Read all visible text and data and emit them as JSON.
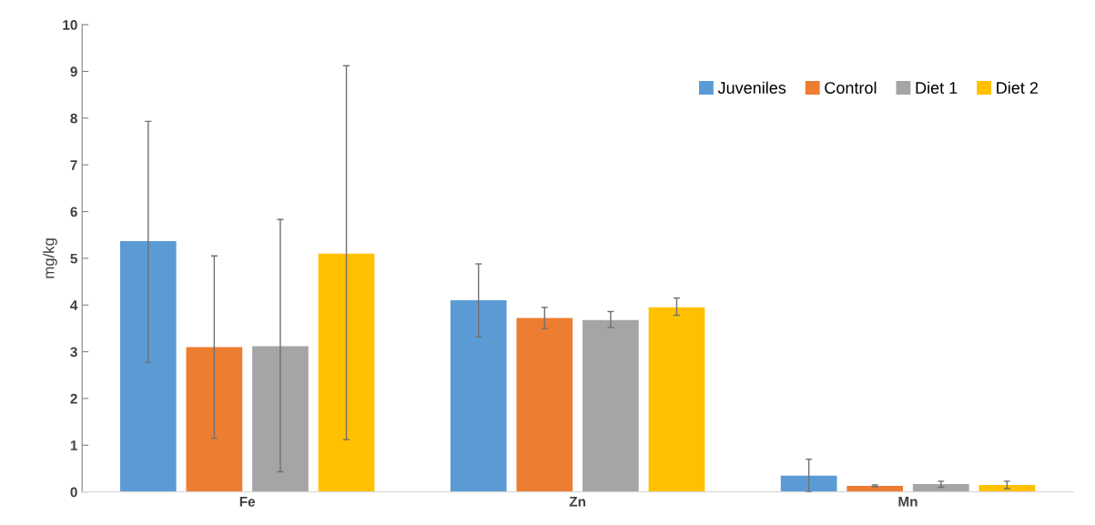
{
  "chart_data": {
    "type": "bar",
    "ylabel": "mg/kg",
    "categories": [
      "Fe",
      "Zn",
      "Mn"
    ],
    "series": [
      {
        "name": "Juveniles",
        "color": "#5b9bd5",
        "values": [
          5.37,
          4.1,
          0.35
        ],
        "errors": [
          [
            2.77,
            7.93
          ],
          [
            3.32,
            4.88
          ],
          [
            0.0,
            0.7
          ]
        ]
      },
      {
        "name": "Control",
        "color": "#ed7d31",
        "values": [
          3.1,
          3.72,
          0.13
        ],
        "errors": [
          [
            1.15,
            5.05
          ],
          [
            3.5,
            3.95
          ],
          [
            0.11,
            0.15
          ]
        ]
      },
      {
        "name": "Diet 1",
        "color": "#a5a5a5",
        "values": [
          3.12,
          3.68,
          0.17
        ],
        "errors": [
          [
            0.43,
            5.83
          ],
          [
            3.52,
            3.86
          ],
          [
            0.1,
            0.23
          ]
        ]
      },
      {
        "name": "Diet 2",
        "color": "#ffc000",
        "values": [
          5.1,
          3.95,
          0.15
        ],
        "errors": [
          [
            1.12,
            9.12
          ],
          [
            3.78,
            4.15
          ],
          [
            0.07,
            0.23
          ]
        ]
      }
    ],
    "ylim": [
      0,
      10
    ],
    "yticks": [
      0,
      1,
      2,
      3,
      4,
      5,
      6,
      7,
      8,
      9,
      10
    ],
    "grid": false,
    "legend": "top right"
  }
}
